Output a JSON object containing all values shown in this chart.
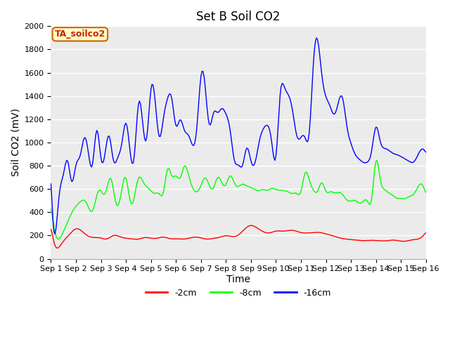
{
  "title": "Set B Soil CO2",
  "xlabel": "Time",
  "ylabel": "Soil CO2 (mV)",
  "ylim": [
    0,
    2000
  ],
  "xlim": [
    0,
    360
  ],
  "xtick_labels": [
    "Sep 1",
    "Sep 2",
    "Sep 3",
    "Sep 4",
    "Sep 5",
    "Sep 6",
    "Sep 7",
    "Sep 8",
    "Sep 9",
    "Sep 10",
    "Sep 11",
    "Sep 12",
    "Sep 13",
    "Sep 14",
    "Sep 15",
    "Sep 16"
  ],
  "xtick_positions": [
    0,
    24,
    48,
    72,
    96,
    120,
    144,
    168,
    192,
    216,
    240,
    264,
    288,
    312,
    336,
    360
  ],
  "line_colors": [
    "#ff0000",
    "#00ff00",
    "#0000ff"
  ],
  "line_labels": [
    "-2cm",
    "-8cm",
    "-16cm"
  ],
  "annotation_text": "TA_soilco2",
  "annotation_bg": "#ffffcc",
  "annotation_border": "#cc6600",
  "plot_bg": "#ebebeb",
  "fig_bg": "#ffffff",
  "title_fontsize": 12,
  "axis_label_fontsize": 10,
  "tick_fontsize": 8,
  "grid_color": "#ffffff",
  "yticks": [
    0,
    200,
    400,
    600,
    800,
    1000,
    1200,
    1400,
    1600,
    1800,
    2000
  ]
}
